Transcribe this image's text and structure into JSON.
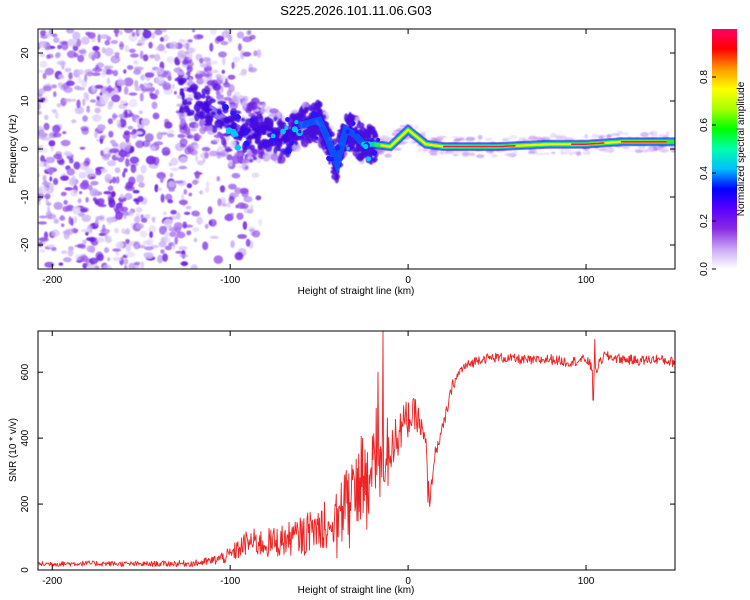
{
  "title": "S225.2026.101.11.06.G03",
  "chart_data": [
    {
      "type": "heatmap",
      "name": "spectrogram",
      "xlabel": "Height of straight line (km)",
      "ylabel": "Frequency (Hz)",
      "xlim": [
        -208,
        150
      ],
      "ylim": [
        -25,
        25
      ],
      "xticks": [
        -200,
        -100,
        0,
        100
      ],
      "yticks": [
        -20,
        -10,
        0,
        10,
        20
      ],
      "colorbar": {
        "label": "Normalized spectral amplitude",
        "range": [
          0,
          1
        ],
        "ticks": [
          0.0,
          0.2,
          0.4,
          0.6,
          0.8
        ],
        "colors": [
          "#ffffff",
          "#c9a8f5",
          "#8a2be2",
          "#5a00ff",
          "#0000ff",
          "#00bfff",
          "#00ffaa",
          "#00ff00",
          "#aaff00",
          "#ffff00",
          "#ff9900",
          "#ff0000",
          "#ff0066"
        ]
      },
      "ridge": {
        "x": [
          -130,
          -110,
          -100,
          -90,
          -80,
          -70,
          -60,
          -50,
          -45,
          -40,
          -35,
          -30,
          -25,
          -20,
          -10,
          0,
          10,
          20,
          50,
          80,
          100,
          120,
          140,
          150
        ],
        "y": [
          12,
          8,
          5,
          3,
          4,
          2,
          5,
          6,
          2,
          -3,
          4,
          3,
          1,
          1,
          0.5,
          4,
          1,
          0.5,
          0.5,
          1,
          1,
          1.5,
          1.5,
          1.5
        ]
      }
    },
    {
      "type": "line",
      "name": "snr",
      "xlabel": "Height of straight line (km)",
      "ylabel": "SNR (10 * v/v)",
      "xlim": [
        -208,
        150
      ],
      "ylim": [
        0,
        725
      ],
      "xticks": [
        -200,
        -100,
        0,
        100
      ],
      "yticks": [
        0,
        200,
        400,
        600
      ],
      "color": "#ee2222",
      "series": [
        {
          "name": "SNR",
          "x": [
            -208,
            -180,
            -150,
            -120,
            -110,
            -100,
            -90,
            -80,
            -70,
            -60,
            -50,
            -40,
            -35,
            -30,
            -25,
            -20,
            -17,
            -14,
            -12,
            -10,
            -5,
            0,
            5,
            10,
            12,
            15,
            20,
            25,
            30,
            40,
            50,
            60,
            70,
            80,
            90,
            100,
            105,
            110,
            120,
            130,
            140,
            150
          ],
          "y": [
            18,
            20,
            18,
            20,
            28,
            45,
            85,
            80,
            90,
            105,
            130,
            180,
            220,
            270,
            300,
            340,
            360,
            300,
            380,
            370,
            420,
            460,
            470,
            380,
            200,
            350,
            440,
            560,
            610,
            640,
            645,
            640,
            635,
            640,
            630,
            640,
            600,
            650,
            640,
            635,
            640,
            630
          ]
        }
      ],
      "noise_amplitude": [
        8,
        8,
        8,
        10,
        14,
        24,
        40,
        45,
        50,
        55,
        70,
        90,
        110,
        130,
        150,
        130,
        140,
        120,
        100,
        80,
        70,
        60,
        50,
        30,
        20,
        20,
        20,
        18,
        16,
        15,
        15,
        15,
        15,
        15,
        15,
        15,
        18,
        15,
        15,
        15,
        15,
        15
      ],
      "spikes": [
        {
          "x": -14,
          "y": 725
        },
        {
          "x": -17,
          "y": 600
        },
        {
          "x": 105,
          "y": 700
        },
        {
          "x": 104,
          "y": 515
        },
        {
          "x": 11,
          "y": 205
        }
      ]
    }
  ]
}
